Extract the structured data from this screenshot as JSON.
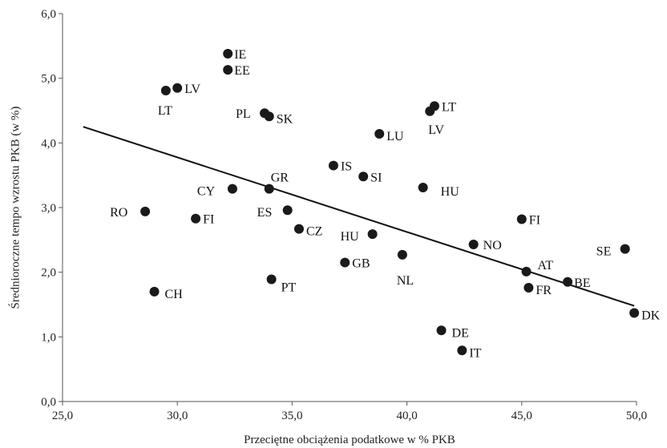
{
  "chart_data": {
    "type": "scatter",
    "xlabel": "Przeciętne obciążenia podatkowe w % PKB",
    "ylabel": "Średnioroczne tempo wzrostu PKB (w %)",
    "xlim": [
      25,
      50
    ],
    "ylim": [
      0,
      6
    ],
    "x_ticks": [
      "25,0",
      "30,0",
      "35,0",
      "40,0",
      "45,0",
      "50,0"
    ],
    "y_ticks": [
      "0,0",
      "1,0",
      "2,0",
      "3,0",
      "4,0",
      "5,0",
      "6,0"
    ],
    "grid": false,
    "trendline": {
      "x": [
        25.9,
        49.9
      ],
      "y": [
        4.25,
        1.48
      ]
    },
    "points": [
      {
        "label": "IE",
        "x": 32.2,
        "y": 5.38
      },
      {
        "label": "EE",
        "x": 32.2,
        "y": 5.13
      },
      {
        "label": "LV",
        "x": 30.0,
        "y": 4.85
      },
      {
        "label": "LT",
        "x": 29.5,
        "y": 4.81
      },
      {
        "label": "PL",
        "x": 33.8,
        "y": 4.46
      },
      {
        "label": "SK",
        "x": 34.0,
        "y": 4.41
      },
      {
        "label": "LT",
        "x": 41.2,
        "y": 4.57
      },
      {
        "label": "LV",
        "x": 41.0,
        "y": 4.49
      },
      {
        "label": "LU",
        "x": 38.8,
        "y": 4.14
      },
      {
        "label": "IS",
        "x": 36.8,
        "y": 3.65
      },
      {
        "label": "SI",
        "x": 38.1,
        "y": 3.48
      },
      {
        "label": "HU",
        "x": 40.7,
        "y": 3.31
      },
      {
        "label": "CY",
        "x": 32.4,
        "y": 3.29
      },
      {
        "label": "GR",
        "x": 34.0,
        "y": 3.29
      },
      {
        "label": "RO",
        "x": 28.6,
        "y": 2.94
      },
      {
        "label": "FI",
        "x": 30.8,
        "y": 2.83
      },
      {
        "label": "ES",
        "x": 34.8,
        "y": 2.96
      },
      {
        "label": "CZ",
        "x": 35.3,
        "y": 2.67
      },
      {
        "label": "HU",
        "x": 38.5,
        "y": 2.59
      },
      {
        "label": "FI",
        "x": 45.0,
        "y": 2.82
      },
      {
        "label": "NO",
        "x": 42.9,
        "y": 2.43
      },
      {
        "label": "SE",
        "x": 49.5,
        "y": 2.36
      },
      {
        "label": "NL",
        "x": 39.8,
        "y": 2.27
      },
      {
        "label": "GB",
        "x": 37.3,
        "y": 2.15
      },
      {
        "label": "AT",
        "x": 45.2,
        "y": 2.01
      },
      {
        "label": "PT",
        "x": 34.1,
        "y": 1.89
      },
      {
        "label": "BE",
        "x": 47.0,
        "y": 1.85
      },
      {
        "label": "FR",
        "x": 45.3,
        "y": 1.76
      },
      {
        "label": "CH",
        "x": 29.0,
        "y": 1.7
      },
      {
        "label": "DK",
        "x": 49.9,
        "y": 1.37
      },
      {
        "label": "DE",
        "x": 41.5,
        "y": 1.1
      },
      {
        "label": "IT",
        "x": 42.4,
        "y": 0.79
      }
    ]
  }
}
